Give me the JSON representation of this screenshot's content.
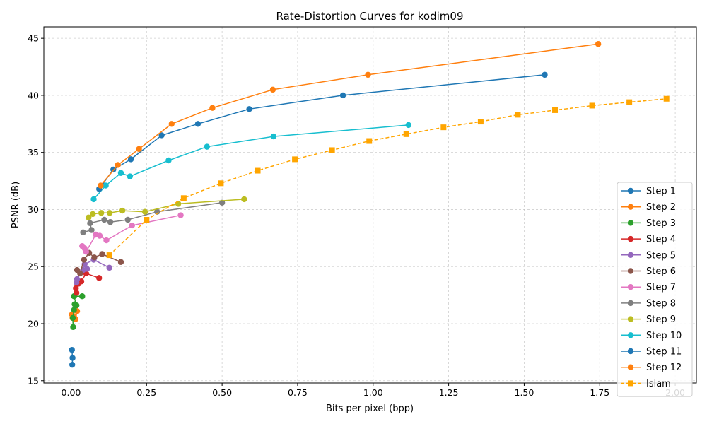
{
  "chart_data": {
    "type": "line",
    "title": "Rate-Distortion Curves for kodim09",
    "xlabel": "Bits per pixel (bpp)",
    "ylabel": "PSNR (dB)",
    "xlim": [
      -0.09,
      2.07
    ],
    "ylim": [
      14.8,
      46.0
    ],
    "xticks": [
      0.0,
      0.25,
      0.5,
      0.75,
      1.0,
      1.25,
      1.5,
      1.75,
      2.0
    ],
    "xtick_labels": [
      "0.00",
      "0.25",
      "0.50",
      "0.75",
      "1.00",
      "1.25",
      "1.50",
      "1.75",
      "2.00"
    ],
    "yticks": [
      15,
      20,
      25,
      30,
      35,
      40,
      45
    ],
    "ytick_labels": [
      "15",
      "20",
      "25",
      "30",
      "35",
      "40",
      "45"
    ],
    "grid": true,
    "legend_position": "bottom-right",
    "series": [
      {
        "name": "Step 1",
        "color": "#1f77b4",
        "marker": "circle",
        "dashed": false,
        "x": [
          0.003,
          0.005,
          0.004
        ],
        "y": [
          17.7,
          17.0,
          16.4
        ]
      },
      {
        "name": "Step 2",
        "color": "#ff7f0e",
        "marker": "circle",
        "dashed": false,
        "x": [
          0.003,
          0.005,
          0.01,
          0.015,
          0.02
        ],
        "y": [
          20.8,
          20.5,
          20.6,
          20.4,
          21.1
        ]
      },
      {
        "name": "Step 3",
        "color": "#2ca02c",
        "marker": "circle",
        "dashed": false,
        "x": [
          0.007,
          0.006,
          0.01,
          0.012,
          0.018,
          0.01,
          0.037
        ],
        "y": [
          19.7,
          20.5,
          21.2,
          21.7,
          21.6,
          22.4,
          22.4
        ]
      },
      {
        "name": "Step 4",
        "color": "#d62728",
        "marker": "circle",
        "dashed": false,
        "x": [
          0.018,
          0.016,
          0.025,
          0.034,
          0.05,
          0.093
        ],
        "y": [
          22.7,
          23.1,
          23.5,
          23.7,
          24.4,
          24.0
        ]
      },
      {
        "name": "Step 5",
        "color": "#9467bd",
        "marker": "circle",
        "dashed": false,
        "x": [
          0.018,
          0.02,
          0.04,
          0.053,
          0.045,
          0.075,
          0.127
        ],
        "y": [
          23.6,
          23.9,
          24.7,
          24.8,
          25.2,
          25.6,
          24.9
        ]
      },
      {
        "name": "Step 6",
        "color": "#8c564b",
        "marker": "circle",
        "dashed": false,
        "x": [
          0.02,
          0.03,
          0.043,
          0.06,
          0.077,
          0.103,
          0.165
        ],
        "y": [
          24.7,
          24.4,
          25.6,
          26.2,
          25.8,
          26.1,
          25.4
        ]
      },
      {
        "name": "Step 7",
        "color": "#e377c2",
        "marker": "circle",
        "dashed": false,
        "x": [
          0.037,
          0.045,
          0.05,
          0.082,
          0.095,
          0.117,
          0.202,
          0.363
        ],
        "y": [
          26.8,
          26.6,
          26.3,
          27.8,
          27.7,
          27.3,
          28.6,
          29.5
        ]
      },
      {
        "name": "Step 8",
        "color": "#7f7f7f",
        "marker": "circle",
        "dashed": false,
        "x": [
          0.04,
          0.068,
          0.063,
          0.11,
          0.13,
          0.188,
          0.285,
          0.5
        ],
        "y": [
          28.0,
          28.2,
          28.8,
          29.1,
          28.9,
          29.1,
          29.8,
          30.6
        ]
      },
      {
        "name": "Step 9",
        "color": "#bcbd22",
        "marker": "circle",
        "dashed": false,
        "x": [
          0.058,
          0.072,
          0.1,
          0.128,
          0.17,
          0.245,
          0.355,
          0.573
        ],
        "y": [
          29.3,
          29.6,
          29.7,
          29.7,
          29.9,
          29.8,
          30.5,
          30.9
        ]
      },
      {
        "name": "Step 10",
        "color": "#17becf",
        "marker": "circle",
        "dashed": false,
        "x": [
          0.075,
          0.115,
          0.165,
          0.195,
          0.323,
          0.45,
          0.67,
          1.117
        ],
        "y": [
          30.9,
          32.1,
          33.2,
          32.9,
          34.3,
          35.5,
          36.4,
          37.4
        ]
      },
      {
        "name": "Step 11",
        "color": "#1f77b4",
        "marker": "circle",
        "dashed": false,
        "x": [
          0.093,
          0.14,
          0.198,
          0.3,
          0.42,
          0.59,
          0.9,
          1.568
        ],
        "y": [
          31.8,
          33.5,
          34.4,
          36.5,
          37.5,
          38.8,
          40.0,
          41.8
        ]
      },
      {
        "name": "Step 12",
        "color": "#ff7f0e",
        "marker": "circle",
        "dashed": false,
        "x": [
          0.098,
          0.155,
          0.225,
          0.333,
          0.468,
          0.668,
          0.983,
          1.745
        ],
        "y": [
          32.1,
          33.9,
          35.3,
          37.5,
          38.9,
          40.5,
          41.8,
          44.5
        ]
      },
      {
        "name": "Islam",
        "color": "#ffa500",
        "marker": "square",
        "dashed": true,
        "x": [
          0.127,
          0.25,
          0.373,
          0.496,
          0.618,
          0.741,
          0.864,
          0.987,
          1.11,
          1.233,
          1.356,
          1.479,
          1.602,
          1.725,
          1.848,
          1.971
        ],
        "y": [
          26.0,
          29.1,
          31.0,
          32.3,
          33.4,
          34.4,
          35.2,
          36.0,
          36.6,
          37.2,
          37.7,
          38.3,
          38.7,
          39.1,
          39.4,
          39.7
        ]
      }
    ]
  }
}
